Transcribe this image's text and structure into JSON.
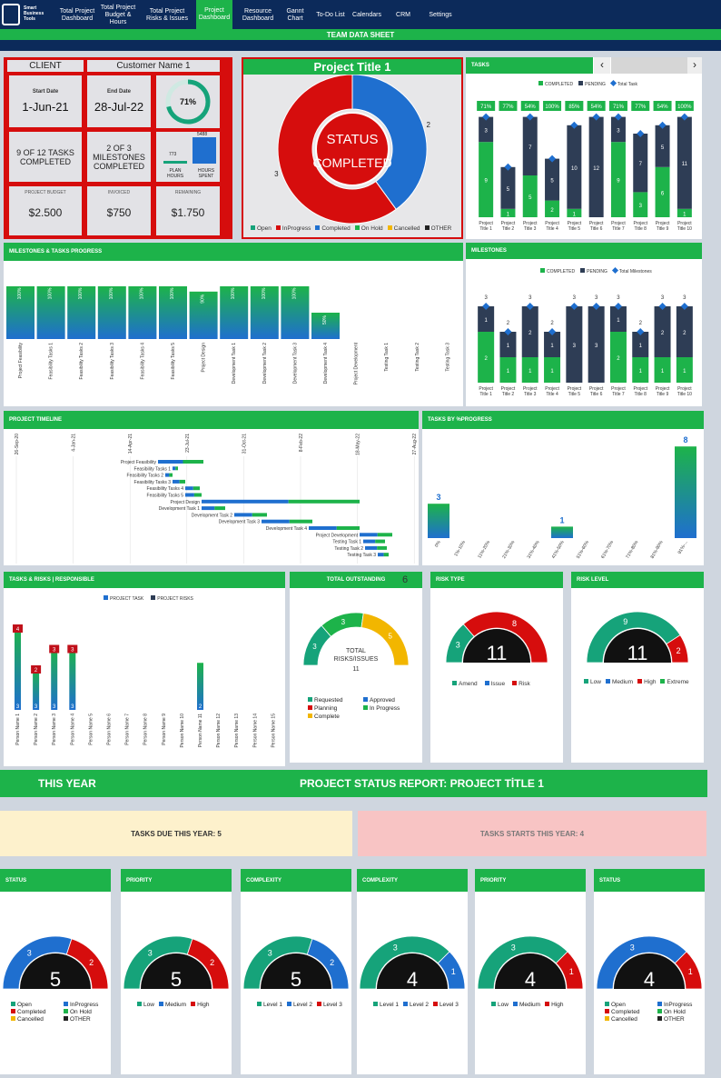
{
  "nav": {
    "logo": "Smart Business Tools",
    "items": [
      "Total Project Dashboard",
      "Total Project Budget & Hours",
      "Total Project Risks & Issues",
      "Project Dashboard",
      "Resource Dashboard",
      "Gannt Chart",
      "To-Do List",
      "Calendars",
      "CRM",
      "Settings"
    ],
    "active": "Project Dashboard",
    "title": "TEAM DATA SHEET"
  },
  "client": {
    "label": "CLIENT",
    "name": "Customer Name 1",
    "start_label": "Start Date",
    "start": "1-Jun-21",
    "end_label": "End Date",
    "end": "28-Jul-22",
    "percent": "71%",
    "percent_value": 0.71,
    "tasks": "9 OF 12 TASKS COMPLETED",
    "milestones": "2 OF 3 MILESTONES COMPLETED",
    "plan_hours": "773",
    "hours_spent": "5488",
    "plan_label": "PLAN HOURS",
    "spent_label": "HOURS SPENT",
    "budget_label": "PROJECT BUDGET",
    "budget": "$2.500",
    "invoiced_label": "INVOICED",
    "invoiced": "$750",
    "remaining_label": "REMAINING",
    "remaining": "$1.750"
  },
  "project": {
    "title": "Project Title 1",
    "status1": "STATUS",
    "status2": "COMPLETED",
    "donut": [
      {
        "label": "Completed",
        "value": 2,
        "color": "#1f6fcf"
      },
      {
        "label": "InProgress",
        "value": 3,
        "color": "#d60d0d"
      }
    ],
    "legend": [
      {
        "label": "Open",
        "color": "#16a37a"
      },
      {
        "label": "InProgress",
        "color": "#d60d0d"
      },
      {
        "label": "Completed",
        "color": "#1f6fcf"
      },
      {
        "label": "On Hold",
        "color": "#1db34a"
      },
      {
        "label": "Cancelled",
        "color": "#f2b600"
      },
      {
        "label": "OTHER",
        "color": "#222"
      }
    ]
  },
  "tasks": {
    "title": "TASKS",
    "prev": "‹",
    "next": "›",
    "legend": [
      "COMPLETED",
      "PENDING",
      "Total Task"
    ],
    "chart_data": {
      "type": "bar",
      "categories": [
        "Project Title 1",
        "Project Title 2",
        "Project Title 3",
        "Project Title 4",
        "Project Title 5",
        "Project Title 6",
        "Project Title 7",
        "Project Title 8",
        "Project Title 9",
        "Project Title 10"
      ],
      "series": [
        {
          "name": "COMPLETED",
          "values": [
            9,
            1,
            5,
            2,
            1,
            0,
            9,
            3,
            6,
            1
          ]
        },
        {
          "name": "PENDING",
          "values": [
            3,
            5,
            7,
            5,
            10,
            12,
            3,
            7,
            5,
            11
          ]
        }
      ],
      "labels": [
        "71%",
        "77%",
        "54%",
        "100%",
        "85%",
        "54%",
        "71%",
        "77%",
        "54%",
        "100%"
      ]
    }
  },
  "milestones_progress": {
    "title": "MILESTONES & TASKS PROGRESS",
    "chart_data": {
      "type": "bar",
      "categories": [
        "Project Feasibility",
        "Feasibility Tasks 1",
        "Feasibility Tasks 2",
        "Feasibility Tasks 3",
        "Feasibility Tasks 4",
        "Feasibility Tasks 5",
        "Project Design",
        "Development Task 1",
        "Development Task 2",
        "Development Task 3",
        "Development Task 4",
        "Project Development",
        "Testing Task 1",
        "Testing Task 2",
        "Testing Task 3"
      ],
      "values": [
        100,
        100,
        100,
        100,
        100,
        100,
        90,
        100,
        100,
        100,
        50,
        0,
        0,
        0,
        0
      ],
      "ylim": [
        0,
        100
      ],
      "labels": [
        "100%",
        "100%",
        "100%",
        "100%",
        "100%",
        "100%",
        "90%",
        "100%",
        "100%",
        "100%",
        "50%",
        "",
        "",
        "",
        ""
      ]
    }
  },
  "milestones": {
    "title": "MILESTONES",
    "legend": [
      "COMPLETED",
      "PENDING",
      "Total Milestones"
    ],
    "chart_data": {
      "type": "bar",
      "categories": [
        "Project Title 1",
        "Project Title 2",
        "Project Title 3",
        "Project Title 4",
        "Project Title 5",
        "Project Title 6",
        "Project Title 7",
        "Project Title 8",
        "Project Title 9",
        "Project Title 10"
      ],
      "series": [
        {
          "name": "COMPLETED",
          "values": [
            2,
            1,
            1,
            1,
            0,
            0,
            2,
            1,
            1,
            1
          ]
        },
        {
          "name": "PENDING",
          "values": [
            1,
            1,
            2,
            1,
            3,
            3,
            1,
            1,
            2,
            2
          ]
        }
      ],
      "totals": [
        3,
        2,
        3,
        2,
        3,
        3,
        3,
        2,
        3,
        3
      ]
    }
  },
  "timeline": {
    "title": "PROJECT TIMELINE",
    "dates": [
      "26-Sep-20",
      "4-Jan-21",
      "14-Apr-21",
      "23-Jul-21",
      "31-Oct-21",
      "8-Feb-22",
      "18-May-22",
      "27-Aug-22"
    ],
    "tasks": [
      "Project Feasibility",
      "Feasibility Tasks 1",
      "Feasibility Tasks 2",
      "Feasibility Tasks 3",
      "Feasibility Tasks 4",
      "Feasibility Tasks 5",
      "Project Design",
      "Development Task 1",
      "Development Task 2",
      "Development Task 3",
      "Development Task 4",
      "Project Development",
      "Testing Task 1",
      "Testing Task 2",
      "Testing Task 3"
    ]
  },
  "progress": {
    "title": "TASKS BY %PROGRESS",
    "chart_data": {
      "type": "bar",
      "categories": [
        "0%",
        "1%-10%",
        "11%-20%",
        "21%-30%",
        "31%-40%",
        "41%-50%",
        "51%-60%",
        "61%-70%",
        "71%-80%",
        "81%-90%",
        "91%-..."
      ],
      "values": [
        3,
        0,
        0,
        0,
        0,
        1,
        0,
        0,
        0,
        0,
        8
      ],
      "labels": [
        "3",
        "",
        "",
        "",
        "",
        "1",
        "",
        "",
        "",
        "",
        "8"
      ]
    }
  },
  "responsible": {
    "title": "TASKS & RISKS | RESPONSIBLE",
    "legend": [
      "PROJECT TASK",
      "PROJECT RISKS"
    ],
    "chart_data": {
      "type": "bar",
      "categories": [
        "Person Name 1",
        "Person Name 2",
        "Person Name 3",
        "Person Name 4",
        "Person Name 5",
        "Person Name 6",
        "Person Name 7",
        "Person Name 8",
        "Person Name 9",
        "Person Name 10",
        "Person Name 11",
        "Person Name 12",
        "Person Name 13",
        "Person Name 14",
        "Person Name 15"
      ],
      "series": [
        {
          "name": "PROJECT TASK",
          "values": [
            3,
            3,
            3,
            3,
            0,
            0,
            0,
            0,
            0,
            0,
            2,
            0,
            0,
            0,
            0
          ]
        },
        {
          "name": "PROJECT RISKS",
          "values": [
            4,
            2,
            3,
            3,
            0,
            0,
            0,
            0,
            0,
            0,
            0,
            0,
            0,
            0,
            0
          ]
        }
      ]
    }
  },
  "outstanding": {
    "title": "TOTAL OUTSTANDING",
    "count": "6",
    "center1": "TOTAL",
    "center2": "RISKS/ISSUES",
    "center3": "11",
    "arc": [
      {
        "label": "Requested",
        "value": 3,
        "color": "#16a37a"
      },
      {
        "label": "In Progress",
        "value": 3,
        "color": "#1db34a"
      },
      {
        "label": "Complete",
        "value": 5,
        "color": "#f2b600"
      }
    ],
    "legend": [
      {
        "label": "Requested",
        "color": "#16a37a"
      },
      {
        "label": "Approved",
        "color": "#1f6fcf"
      },
      {
        "label": "Planning",
        "color": "#d60d0d"
      },
      {
        "label": "In Progress",
        "color": "#1db34a"
      },
      {
        "label": "Complete",
        "color": "#f2b600"
      }
    ]
  },
  "risk_type": {
    "title": "RISK TYPE",
    "center": "11",
    "arc": [
      {
        "label": "Amend",
        "value": 3,
        "color": "#16a37a"
      },
      {
        "label": "Risk",
        "value": 8,
        "color": "#d60d0d"
      }
    ],
    "legend": [
      {
        "label": "Amend",
        "color": "#16a37a"
      },
      {
        "label": "Issue",
        "color": "#1f6fcf"
      },
      {
        "label": "Risk",
        "color": "#d60d0d"
      }
    ]
  },
  "risk_level": {
    "title": "RISK LEVEL",
    "center": "11",
    "arc": [
      {
        "label": "Low",
        "value": 9,
        "color": "#16a37a"
      },
      {
        "label": "High",
        "value": 2,
        "color": "#d60d0d"
      }
    ],
    "legend": [
      {
        "label": "Low",
        "color": "#16a37a"
      },
      {
        "label": "Medium",
        "color": "#1f6fcf"
      },
      {
        "label": "High",
        "color": "#d60d0d"
      },
      {
        "label": "Extreme",
        "color": "#1db34a"
      }
    ]
  },
  "report": {
    "this_year": "THIS YEAR",
    "title": "PROJECT STATUS REPORT: PROJECT TİTLE 1",
    "due": "TASKS DUE THIS YEAR: 5",
    "starts": "TASKS STARTS THIS YEAR: 4"
  },
  "gauges": [
    {
      "title": "STATUS",
      "center": "5",
      "arc": [
        {
          "label": "Open",
          "value": 3,
          "color": "#1f6fcf"
        },
        {
          "label": "Completed",
          "value": 2,
          "color": "#d60d0d"
        }
      ],
      "legend": [
        {
          "label": "Open",
          "color": "#16a37a"
        },
        {
          "label": "InProgress",
          "color": "#1f6fcf"
        },
        {
          "label": "Completed",
          "color": "#d60d0d"
        },
        {
          "label": "On Hold",
          "color": "#1db34a"
        },
        {
          "label": "Cancelled",
          "color": "#f2b600"
        },
        {
          "label": "OTHER",
          "color": "#222"
        }
      ]
    },
    {
      "title": "PRIORITY",
      "center": "5",
      "arc": [
        {
          "label": "Low",
          "value": 3,
          "color": "#16a37a"
        },
        {
          "label": "High",
          "value": 2,
          "color": "#d60d0d"
        }
      ],
      "legend": [
        {
          "label": "Low",
          "color": "#16a37a"
        },
        {
          "label": "Medium",
          "color": "#1f6fcf"
        },
        {
          "label": "High",
          "color": "#d60d0d"
        }
      ]
    },
    {
      "title": "COMPLEXITY",
      "center": "5",
      "arc": [
        {
          "label": "Level 1",
          "value": 3,
          "color": "#16a37a"
        },
        {
          "label": "Level 2",
          "value": 2,
          "color": "#1f6fcf"
        }
      ],
      "legend": [
        {
          "label": "Level 1",
          "color": "#16a37a"
        },
        {
          "label": "Level 2",
          "color": "#1f6fcf"
        },
        {
          "label": "Level 3",
          "color": "#d60d0d"
        }
      ]
    },
    {
      "title": "COMPLEXITY",
      "center": "4",
      "arc": [
        {
          "label": "Level 1",
          "value": 3,
          "color": "#16a37a"
        },
        {
          "label": "Level 2",
          "value": 1,
          "color": "#1f6fcf"
        }
      ],
      "legend": [
        {
          "label": "Level 1",
          "color": "#16a37a"
        },
        {
          "label": "Level 2",
          "color": "#1f6fcf"
        },
        {
          "label": "Level 3",
          "color": "#d60d0d"
        }
      ]
    },
    {
      "title": "PRIORITY",
      "center": "4",
      "arc": [
        {
          "label": "Low",
          "value": 3,
          "color": "#16a37a"
        },
        {
          "label": "High",
          "value": 1,
          "color": "#d60d0d"
        }
      ],
      "legend": [
        {
          "label": "Low",
          "color": "#16a37a"
        },
        {
          "label": "Medium",
          "color": "#1f6fcf"
        },
        {
          "label": "High",
          "color": "#d60d0d"
        }
      ]
    },
    {
      "title": "STATUS",
      "center": "4",
      "arc": [
        {
          "label": "Open",
          "value": 3,
          "color": "#1f6fcf"
        },
        {
          "label": "Completed",
          "value": 1,
          "color": "#d60d0d"
        }
      ],
      "legend": [
        {
          "label": "Open",
          "color": "#16a37a"
        },
        {
          "label": "InProgress",
          "color": "#1f6fcf"
        },
        {
          "label": "Completed",
          "color": "#d60d0d"
        },
        {
          "label": "On Hold",
          "color": "#1db34a"
        },
        {
          "label": "Cancelled",
          "color": "#f2b600"
        },
        {
          "label": "OTHER",
          "color": "#222"
        }
      ]
    }
  ],
  "colors": {
    "green": "#1db34a",
    "navy": "#0c2a5a",
    "blue": "#1f6fcf",
    "red": "#d60d0d",
    "dark": "#2e3d55"
  }
}
